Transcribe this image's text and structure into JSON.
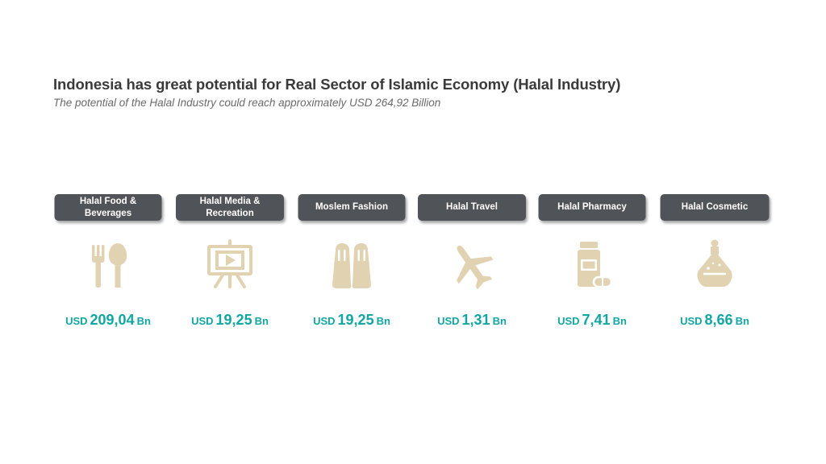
{
  "slide": {
    "title": "Indonesia has great potential for Real Sector of Islamic Economy (Halal Industry)",
    "subtitle": "The potential of the Halal Industry could reach approximately USD 264,92 Billion"
  },
  "colors": {
    "label_bg": "#505357",
    "icon": "#e1d2b2",
    "value": "#12a6a2",
    "title": "#3a3a3a"
  },
  "sectors": [
    {
      "label": "Halal Food &\nBeverages",
      "icon": "fork-spoon-icon",
      "currency": "USD",
      "amount": "209,04",
      "unit": "Bn"
    },
    {
      "label": "Halal Media &\nRecreation",
      "icon": "projector-screen-icon",
      "currency": "USD",
      "amount": "19,25",
      "unit": "Bn"
    },
    {
      "label": "Moslem Fashion",
      "icon": "clothing-icon",
      "currency": "USD",
      "amount": "19,25",
      "unit": "Bn"
    },
    {
      "label": "Halal Travel",
      "icon": "airplane-icon",
      "currency": "USD",
      "amount": "1,31",
      "unit": "Bn"
    },
    {
      "label": "Halal Pharmacy",
      "icon": "medicine-bottle-icon",
      "currency": "USD",
      "amount": "7,41",
      "unit": "Bn"
    },
    {
      "label": "Halal Cosmetic",
      "icon": "perfume-bottle-icon",
      "currency": "USD",
      "amount": "8,66",
      "unit": "Bn"
    }
  ]
}
